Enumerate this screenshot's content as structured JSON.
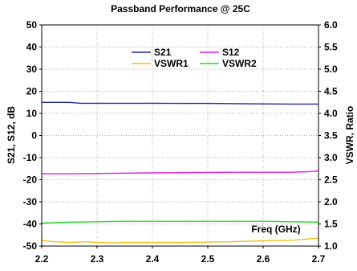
{
  "chart_data": {
    "type": "line",
    "title": "Passband Performance @ 25C",
    "xlabel": "Freq (GHz)",
    "ylabel": "S21, S12, dB",
    "y2label": "VSWR, Ratio",
    "xlim": [
      2.2,
      2.7
    ],
    "ylim": [
      -50,
      50
    ],
    "y2lim": [
      1.0,
      6.0
    ],
    "x_ticks": [
      "2.2",
      "2.3",
      "2.4",
      "2.5",
      "2.6",
      "2.7"
    ],
    "y_ticks": [
      "50",
      "40",
      "30",
      "20",
      "10",
      "0",
      "-10",
      "-20",
      "-30",
      "-40",
      "-50"
    ],
    "y2_ticks": [
      "6.0",
      "5.5",
      "5.0",
      "4.5",
      "4.0",
      "3.5",
      "3.0",
      "2.5",
      "2.0",
      "1.5",
      "1.0"
    ],
    "grid": true,
    "legend_position": "top-center",
    "series": [
      {
        "name": "S21",
        "axis": "left",
        "color": "#1f2a9c",
        "x": [
          2.2,
          2.25,
          2.27,
          2.3,
          2.35,
          2.4,
          2.45,
          2.5,
          2.55,
          2.6,
          2.65,
          2.7
        ],
        "y": [
          15.0,
          15.0,
          14.6,
          14.6,
          14.6,
          14.6,
          14.5,
          14.5,
          14.4,
          14.3,
          14.2,
          14.2
        ]
      },
      {
        "name": "S12",
        "axis": "left",
        "color": "#e020e0",
        "x": [
          2.2,
          2.25,
          2.3,
          2.35,
          2.4,
          2.45,
          2.5,
          2.55,
          2.6,
          2.65,
          2.68,
          2.7
        ],
        "y": [
          -17.3,
          -17.3,
          -17.2,
          -17.0,
          -16.9,
          -16.8,
          -16.7,
          -16.6,
          -16.6,
          -16.6,
          -16.4,
          -16.0
        ]
      },
      {
        "name": "VSWR1",
        "axis": "right",
        "color": "#f0c020",
        "x": [
          2.2,
          2.22,
          2.25,
          2.28,
          2.3,
          2.33,
          2.35,
          2.4,
          2.45,
          2.5,
          2.55,
          2.6,
          2.62,
          2.65,
          2.68,
          2.7
        ],
        "y": [
          1.13,
          1.1,
          1.08,
          1.1,
          1.08,
          1.07,
          1.08,
          1.08,
          1.08,
          1.09,
          1.1,
          1.12,
          1.13,
          1.13,
          1.16,
          1.18
        ]
      },
      {
        "name": "VSWR2",
        "axis": "right",
        "color": "#30d030",
        "x": [
          2.2,
          2.25,
          2.3,
          2.35,
          2.4,
          2.45,
          2.5,
          2.55,
          2.6,
          2.65,
          2.7
        ],
        "y": [
          1.52,
          1.54,
          1.55,
          1.56,
          1.56,
          1.56,
          1.56,
          1.56,
          1.56,
          1.55,
          1.54
        ]
      }
    ]
  }
}
